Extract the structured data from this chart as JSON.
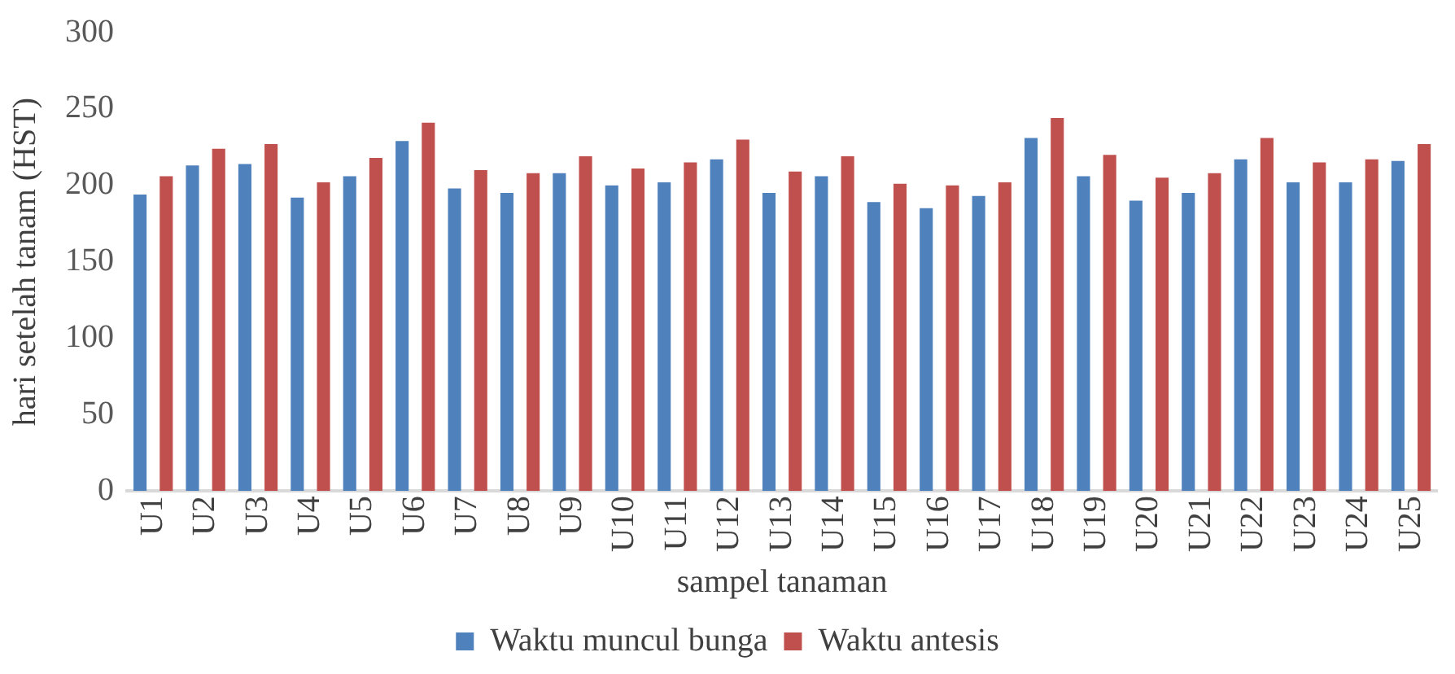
{
  "chart_data": {
    "type": "bar",
    "xlabel": "sampel tanaman",
    "ylabel": "hari setelah tanam (HST)",
    "categories": [
      "U1",
      "U2",
      "U3",
      "U4",
      "U5",
      "U6",
      "U7",
      "U8",
      "U9",
      "U10",
      "U11",
      "U12",
      "U13",
      "U14",
      "U15",
      "U16",
      "U17",
      "U18",
      "U19",
      "U20",
      "U21",
      "U22",
      "U23",
      "U24",
      "U25"
    ],
    "series": [
      {
        "name": "Waktu muncul bunga",
        "color": "#4f81bd",
        "values": [
          194,
          213,
          214,
          192,
          206,
          229,
          198,
          195,
          208,
          200,
          202,
          217,
          195,
          206,
          189,
          185,
          193,
          231,
          206,
          190,
          195,
          217,
          202,
          202,
          216
        ]
      },
      {
        "name": "Waktu antesis",
        "color": "#c0504d",
        "values": [
          206,
          224,
          227,
          202,
          218,
          241,
          210,
          208,
          219,
          211,
          215,
          230,
          209,
          219,
          201,
          200,
          202,
          244,
          220,
          205,
          208,
          231,
          215,
          217,
          227
        ]
      }
    ],
    "ylim": [
      0,
      300
    ],
    "yticks": [
      0,
      50,
      100,
      150,
      200,
      250,
      300
    ],
    "grid": false,
    "legend": "bottom"
  }
}
